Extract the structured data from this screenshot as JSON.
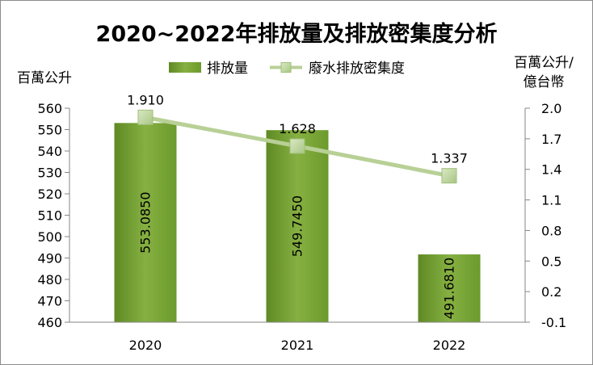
{
  "chart_data": {
    "type": "bar",
    "title": "2020~2022年排放量及排放密集度分析",
    "categories": [
      "2020",
      "2021",
      "2022"
    ],
    "y_left_label": "百萬公升",
    "y_right_label_line1": "百萬公升/",
    "y_right_label_line2": "億台幣",
    "y_left_range": [
      460,
      560
    ],
    "y_left_ticks": [
      "560",
      "550",
      "540",
      "530",
      "520",
      "510",
      "500",
      "490",
      "480",
      "470",
      "460"
    ],
    "y_right_range": [
      -0.1,
      2.0
    ],
    "y_right_ticks": [
      "2.0",
      "1.7",
      "1.4",
      "1.1",
      "0.8",
      "0.5",
      "0.2",
      "-0.1"
    ],
    "legend_position": "top",
    "grid": false,
    "series": [
      {
        "name": "排放量",
        "type": "bar",
        "axis": "left",
        "color": "#77a035",
        "values": [
          553.085,
          549.745,
          491.681
        ],
        "labels": [
          "553.0850",
          "549.7450",
          "491.6810"
        ]
      },
      {
        "name": "廢水排放密集度",
        "type": "line",
        "axis": "right",
        "color": "#b8d096",
        "values": [
          1.91,
          1.628,
          1.337
        ],
        "labels": [
          "1.910",
          "1.628",
          "1.337"
        ]
      }
    ]
  }
}
